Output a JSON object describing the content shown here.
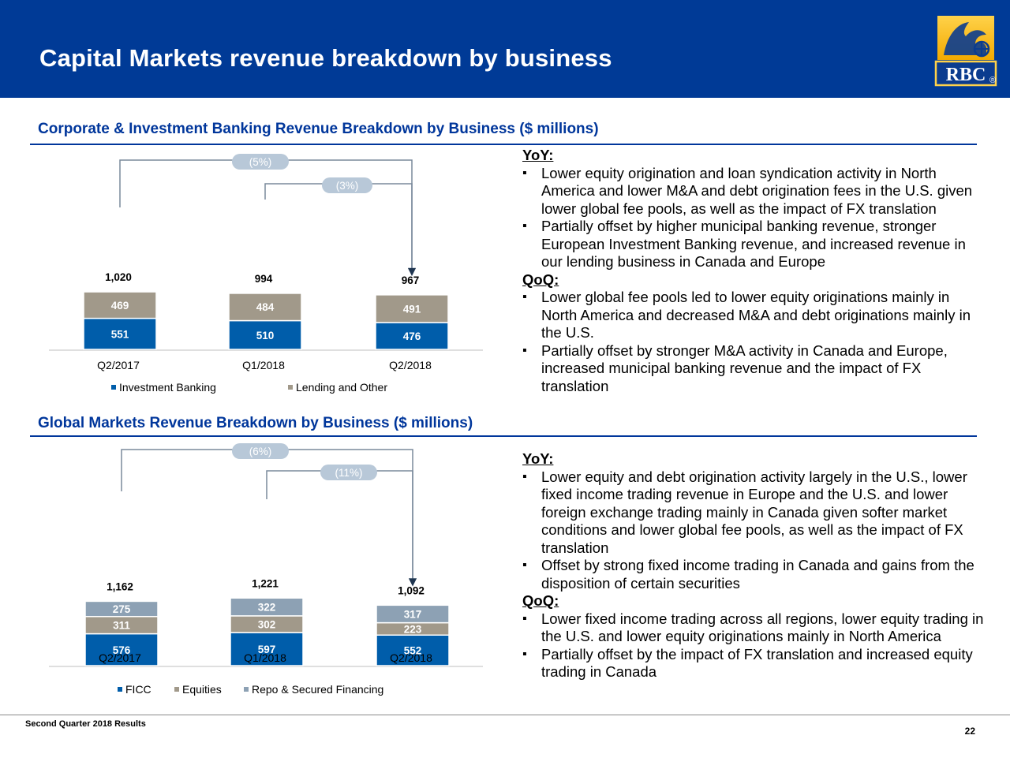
{
  "header": {
    "title": "Capital Markets revenue breakdown by business",
    "brand_color": "#003a96",
    "logo_text": "RBC"
  },
  "colors": {
    "blue": "#005daa",
    "gray": "#a1998a",
    "lightblue": "#8da1b4",
    "title_blue": "#00369b",
    "pill": "#b8c8d8"
  },
  "sections": [
    {
      "title": "Corporate & Investment Banking Revenue Breakdown by Business ($ millions)"
    },
    {
      "title": "Global Markets Revenue Breakdown by Business ($ millions)"
    }
  ],
  "chart_data": [
    {
      "type": "bar",
      "stacked": true,
      "categories": [
        "Q2/2017",
        "Q1/2018",
        "Q2/2018"
      ],
      "series": [
        {
          "name": "Investment Banking",
          "values": [
            551,
            510,
            476
          ]
        },
        {
          "name": "Lending and Other",
          "values": [
            469,
            484,
            491
          ]
        }
      ],
      "totals": [
        1020,
        994,
        967
      ],
      "total_labels": [
        "1,020",
        "994",
        "967"
      ],
      "annotations": [
        {
          "text": "(5%)",
          "from": "Q2/2017",
          "to": "Q2/2018"
        },
        {
          "text": "(3%)",
          "from": "Q1/2018",
          "to": "Q2/2018"
        }
      ],
      "legend": "bottom",
      "title": "",
      "xlabel": "",
      "ylabel": ""
    },
    {
      "type": "bar",
      "stacked": true,
      "categories": [
        "Q2/2017",
        "Q1/2018",
        "Q2/2018"
      ],
      "series": [
        {
          "name": "FICC",
          "values": [
            576,
            597,
            552
          ]
        },
        {
          "name": "Equities",
          "values": [
            311,
            302,
            223
          ]
        },
        {
          "name": "Repo & Secured Financing",
          "values": [
            275,
            322,
            317
          ]
        }
      ],
      "totals": [
        1162,
        1221,
        1092
      ],
      "total_labels": [
        "1,162",
        "1,221",
        "1,092"
      ],
      "annotations": [
        {
          "text": "(6%)",
          "from": "Q2/2017",
          "to": "Q2/2018"
        },
        {
          "text": "(11%)",
          "from": "Q1/2018",
          "to": "Q2/2018"
        }
      ],
      "legend": "bottom",
      "title": "",
      "xlabel": "",
      "ylabel": ""
    }
  ],
  "notes": [
    {
      "blocks": [
        {
          "heading": "YoY:",
          "bullets": [
            "Lower equity origination and loan syndication activity in North America and lower M&A and debt origination fees in the U.S. given lower global fee pools, as well as the impact of FX translation",
            "Partially offset by higher municipal banking revenue, stronger European Investment Banking revenue, and increased revenue in our lending business in Canada and Europe"
          ]
        },
        {
          "heading": "QoQ:",
          "bullets": [
            "Lower global fee pools led to lower equity originations mainly in North America and decreased M&A and debt originations mainly in the U.S.",
            "Partially offset by stronger M&A activity in Canada and Europe, increased municipal banking revenue and the impact of FX translation"
          ]
        }
      ]
    },
    {
      "blocks": [
        {
          "heading": "YoY:",
          "bullets": [
            "Lower equity and debt origination activity largely in the U.S., lower fixed income trading revenue in Europe and the U.S. and lower foreign exchange trading mainly in Canada given softer market conditions and lower global fee pools, as well as the impact of FX translation",
            "Offset by strong fixed income trading in Canada and gains from the disposition of certain securities"
          ]
        },
        {
          "heading": "QoQ:",
          "bullets": [
            "Lower fixed income trading across all regions, lower equity trading in the U.S. and lower equity originations mainly in North America",
            "Partially offset by the impact of FX translation and increased equity trading in Canada"
          ]
        }
      ]
    }
  ],
  "footer": {
    "left": "Second Quarter 2018 Results",
    "page": "22"
  }
}
